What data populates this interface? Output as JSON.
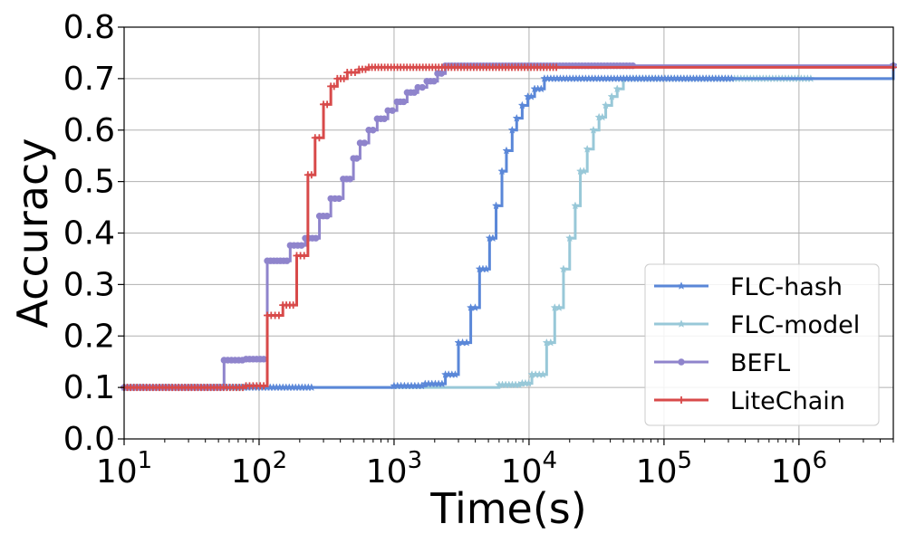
{
  "chart_data": {
    "type": "line",
    "xlabel": "Time(s)",
    "ylabel": "Accuracy",
    "x_scale": "log",
    "xlim": [
      10,
      5000000
    ],
    "ylim": [
      0,
      0.8
    ],
    "grid": true,
    "legend_position": "lower-right",
    "x_ticks": [
      {
        "value": 10,
        "base": "10",
        "exp": "1"
      },
      {
        "value": 100,
        "base": "10",
        "exp": "2"
      },
      {
        "value": 1000,
        "base": "10",
        "exp": "3"
      },
      {
        "value": 10000,
        "base": "10",
        "exp": "4"
      },
      {
        "value": 100000,
        "base": "10",
        "exp": "5"
      },
      {
        "value": 1000000,
        "base": "10",
        "exp": "6"
      }
    ],
    "y_ticks": [
      "0.0",
      "0.1",
      "0.2",
      "0.3",
      "0.4",
      "0.5",
      "0.6",
      "0.7",
      "0.8"
    ],
    "series": [
      {
        "name": "FLC-model",
        "color": "#98c8d8",
        "marker": "star",
        "x": [
          10,
          6000,
          8900,
          10500,
          13500,
          15500,
          18000,
          20000,
          22000,
          24000,
          27000,
          30000,
          33000,
          37000,
          41000,
          45000,
          50000,
          5000000
        ],
        "y": [
          0.1,
          0.105,
          0.108,
          0.125,
          0.187,
          0.255,
          0.33,
          0.39,
          0.453,
          0.52,
          0.563,
          0.6,
          0.625,
          0.648,
          0.665,
          0.68,
          0.7,
          0.727
        ]
      },
      {
        "name": "FLC-hash",
        "color": "#5a87d8",
        "marker": "star",
        "x": [
          10,
          1000,
          1700,
          2400,
          3000,
          3700,
          4300,
          5100,
          5700,
          6300,
          6800,
          7500,
          8100,
          8900,
          9800,
          11000,
          13000,
          5000000
        ],
        "y": [
          0.1,
          0.103,
          0.107,
          0.125,
          0.187,
          0.255,
          0.33,
          0.39,
          0.453,
          0.52,
          0.56,
          0.6,
          0.623,
          0.648,
          0.665,
          0.68,
          0.7,
          0.725
        ]
      },
      {
        "name": "BEFL",
        "color": "#8f84cc",
        "marker": "circle",
        "x": [
          10,
          55,
          80,
          115,
          170,
          220,
          280,
          340,
          420,
          500,
          560,
          650,
          750,
          900,
          1050,
          1250,
          1500,
          1750,
          2100,
          2400,
          5000000
        ],
        "y": [
          0.1,
          0.153,
          0.155,
          0.346,
          0.376,
          0.39,
          0.433,
          0.467,
          0.505,
          0.545,
          0.575,
          0.6,
          0.622,
          0.638,
          0.655,
          0.673,
          0.683,
          0.695,
          0.71,
          0.725,
          0.725
        ]
      },
      {
        "name": "LiteChain",
        "color": "#d84a4a",
        "marker": "plus",
        "x": [
          10,
          80,
          115,
          150,
          190,
          230,
          260,
          300,
          340,
          380,
          450,
          550,
          650,
          5000000
        ],
        "y": [
          0.1,
          0.103,
          0.24,
          0.26,
          0.356,
          0.513,
          0.585,
          0.65,
          0.685,
          0.7,
          0.712,
          0.718,
          0.722,
          0.722
        ]
      }
    ],
    "legend_order": [
      "FLC-hash",
      "FLC-model",
      "BEFL",
      "LiteChain"
    ]
  }
}
